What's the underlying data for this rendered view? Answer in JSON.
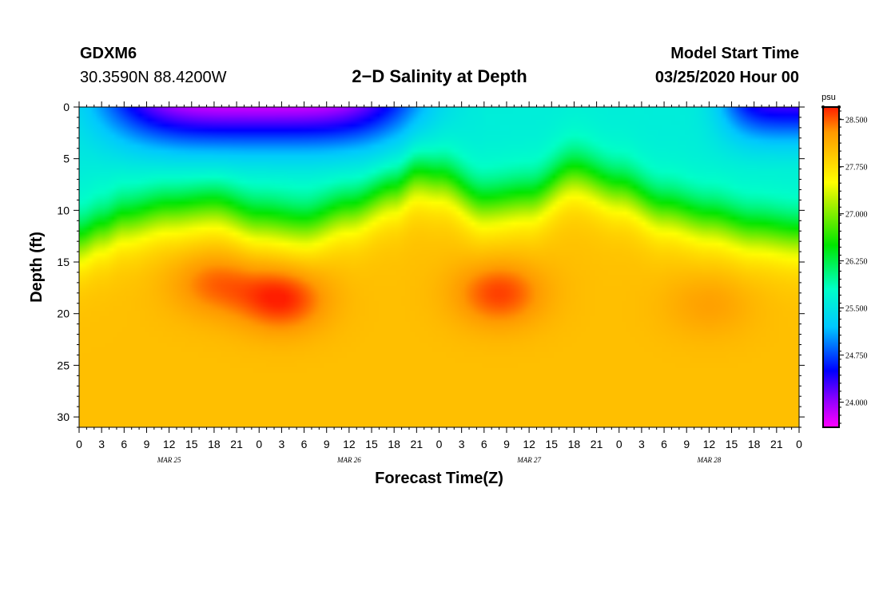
{
  "header": {
    "station_id": "GDXM6",
    "coordinates": "30.3590N 88.4200W",
    "title": "2−D Salinity at Depth",
    "model_start_label": "Model Start Time",
    "model_start_value": "03/25/2020 Hour 00"
  },
  "chart_data": {
    "type": "heatmap",
    "title": "2−D Salinity at Depth",
    "xlabel": "Forecast Time(Z)",
    "ylabel": "Depth (ft)",
    "x_range_hours": [
      0,
      96
    ],
    "y_range_ft": [
      0,
      31
    ],
    "x_tick_labels": [
      "0",
      "3",
      "6",
      "9",
      "12",
      "15",
      "18",
      "21",
      "0",
      "3",
      "6",
      "9",
      "12",
      "15",
      "18",
      "21",
      "0",
      "3",
      "6",
      "9",
      "12",
      "15",
      "18",
      "21",
      "0",
      "3",
      "6",
      "9",
      "12",
      "15",
      "18",
      "21",
      "0"
    ],
    "x_tick_interval_hours": 3,
    "day_labels": [
      {
        "label": "MAR 25",
        "hour": 12
      },
      {
        "label": "MAR 26",
        "hour": 36
      },
      {
        "label": "MAR 27",
        "hour": 60
      },
      {
        "label": "MAR 28",
        "hour": 84
      }
    ],
    "y_ticks": [
      0,
      5,
      10,
      15,
      20,
      25,
      30
    ],
    "y_tick_labels": [
      "0",
      "5",
      "10",
      "15",
      "20",
      "25",
      "30"
    ],
    "colorbar": {
      "unit": "psu",
      "min": 23.6,
      "max": 28.7,
      "ticks": [
        28.5,
        27.75,
        27.0,
        26.25,
        25.5,
        24.75,
        24.0
      ],
      "tick_labels": [
        "28.500",
        "27.750",
        "27.000",
        "26.250",
        "25.500",
        "24.750",
        "24.000"
      ],
      "stops": [
        {
          "value": 23.6,
          "color": "#ff00ff"
        },
        {
          "value": 24.0,
          "color": "#9900ff"
        },
        {
          "value": 24.5,
          "color": "#0000ff"
        },
        {
          "value": 25.2,
          "color": "#00c8ff"
        },
        {
          "value": 25.8,
          "color": "#00ffc8"
        },
        {
          "value": 26.5,
          "color": "#00e600"
        },
        {
          "value": 27.2,
          "color": "#b4f000"
        },
        {
          "value": 27.5,
          "color": "#ffff00"
        },
        {
          "value": 27.9,
          "color": "#ffcc00"
        },
        {
          "value": 28.3,
          "color": "#ff9900"
        },
        {
          "value": 28.7,
          "color": "#ff1e00"
        }
      ]
    },
    "background_salinity_psu": 28.0,
    "halocline_depth_ft": [
      {
        "hour": 0,
        "depth": 13
      },
      {
        "hour": 3,
        "depth": 12
      },
      {
        "hour": 6,
        "depth": 11
      },
      {
        "hour": 12,
        "depth": 10
      },
      {
        "hour": 18,
        "depth": 9.5
      },
      {
        "hour": 24,
        "depth": 11
      },
      {
        "hour": 30,
        "depth": 11.5
      },
      {
        "hour": 36,
        "depth": 10
      },
      {
        "hour": 42,
        "depth": 8
      },
      {
        "hour": 45,
        "depth": 6.5
      },
      {
        "hour": 48,
        "depth": 7
      },
      {
        "hour": 54,
        "depth": 9.5
      },
      {
        "hour": 60,
        "depth": 9
      },
      {
        "hour": 66,
        "depth": 6.5
      },
      {
        "hour": 72,
        "depth": 8
      },
      {
        "hour": 78,
        "depth": 10
      },
      {
        "hour": 84,
        "depth": 11
      },
      {
        "hour": 90,
        "depth": 12
      },
      {
        "hour": 96,
        "depth": 12.5
      }
    ],
    "surface_fresh_layers": [
      {
        "hour_start": 0,
        "hour_end": 48,
        "center_hour": 24,
        "depth_ft": 7,
        "min_psu": 23.8
      },
      {
        "hour_start": 72,
        "hour_end": 96,
        "center_hour": 96,
        "depth_ft": 6,
        "min_psu": 24.3
      }
    ],
    "salty_cores": [
      {
        "hour": 27,
        "depth_ft": 18.5,
        "psu": 28.7
      },
      {
        "hour": 18,
        "depth_ft": 17,
        "psu": 28.45
      },
      {
        "hour": 56,
        "depth_ft": 18,
        "psu": 28.6
      },
      {
        "hour": 84,
        "depth_ft": 19,
        "psu": 28.25
      }
    ]
  }
}
